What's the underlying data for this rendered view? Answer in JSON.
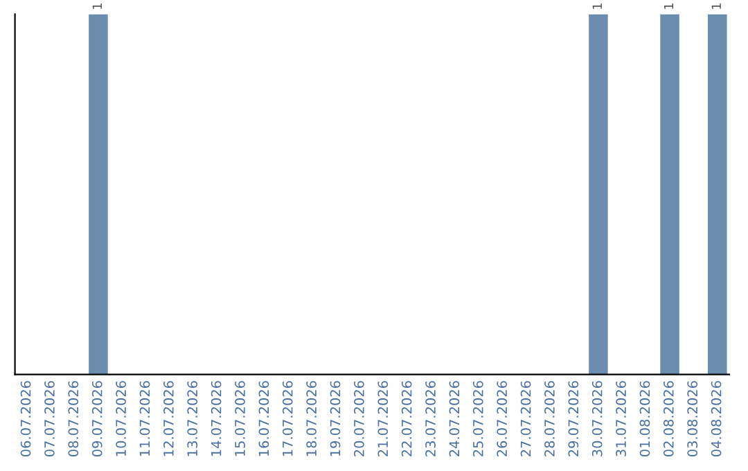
{
  "chart_data": {
    "type": "bar",
    "categories": [
      "06.07.2026",
      "07.07.2026",
      "08.07.2026",
      "09.07.2026",
      "10.07.2026",
      "11.07.2026",
      "12.07.2026",
      "13.07.2026",
      "14.07.2026",
      "15.07.2026",
      "16.07.2026",
      "17.07.2026",
      "18.07.2026",
      "19.07.2026",
      "20.07.2026",
      "21.07.2026",
      "22.07.2026",
      "23.07.2026",
      "24.07.2026",
      "25.07.2026",
      "26.07.2026",
      "27.07.2026",
      "28.07.2026",
      "29.07.2026",
      "30.07.2026",
      "31.07.2026",
      "01.08.2026",
      "02.08.2026",
      "03.08.2026",
      "04.08.2026"
    ],
    "values": [
      0,
      0,
      0,
      1,
      0,
      0,
      0,
      0,
      0,
      0,
      0,
      0,
      0,
      0,
      0,
      0,
      0,
      0,
      0,
      0,
      0,
      0,
      0,
      0,
      1,
      0,
      0,
      1,
      0,
      1
    ],
    "value_labels": [
      null,
      null,
      null,
      "1",
      null,
      null,
      null,
      null,
      null,
      null,
      null,
      null,
      null,
      null,
      null,
      null,
      null,
      null,
      null,
      null,
      null,
      null,
      null,
      null,
      "1",
      null,
      null,
      "1",
      null,
      "1"
    ],
    "color": "#6b8cad",
    "tick_labels": "x",
    "grid": false,
    "legend": false
  }
}
